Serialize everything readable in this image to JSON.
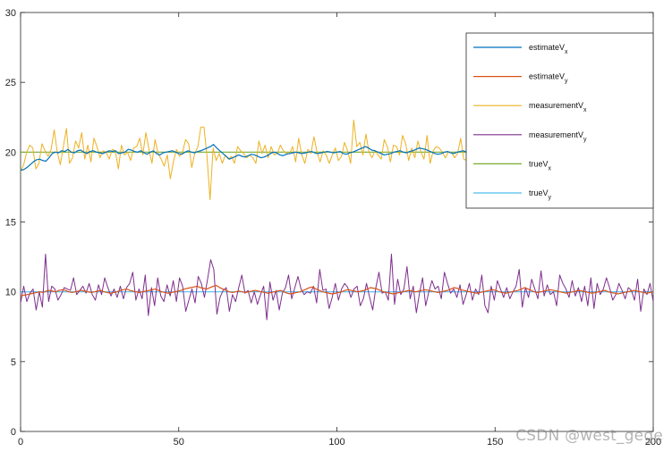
{
  "chart_data": {
    "type": "line",
    "title": "",
    "xlabel": "",
    "ylabel": "",
    "xlim": [
      0,
      200
    ],
    "ylim": [
      0,
      30
    ],
    "xticks": [
      0,
      50,
      100,
      150,
      200
    ],
    "yticks": [
      0,
      5,
      10,
      15,
      20,
      25,
      30
    ],
    "grid": false,
    "legend_position": "top-right",
    "series": [
      {
        "name": "estimateVx",
        "label_main": "estimateV",
        "label_sub": "x",
        "color": "#0072BD",
        "values": [
          18.7,
          18.75,
          18.9,
          19.1,
          19.3,
          19.45,
          19.5,
          19.4,
          19.35,
          19.6,
          19.9,
          20.0,
          19.95,
          20.1,
          20.05,
          20.2,
          20.0,
          19.95,
          20.1,
          20.15,
          20.0,
          19.9,
          20.05,
          20.1,
          20.0,
          19.95,
          19.9,
          20.0,
          20.1,
          20.05,
          20.1,
          19.9,
          19.95,
          20.0,
          20.2,
          20.15,
          20.05,
          20.0,
          20.1,
          19.95,
          19.85,
          20.0,
          20.1,
          19.9,
          19.8,
          19.95,
          20.0,
          20.05,
          20.1,
          20.0,
          19.9,
          19.85,
          20.0,
          20.1,
          20.0,
          19.95,
          20.05,
          20.1,
          20.2,
          20.3,
          20.4,
          20.55,
          20.3,
          20.1,
          19.9,
          19.7,
          19.5,
          19.6,
          19.7,
          19.8,
          19.7,
          19.65,
          19.75,
          19.85,
          19.8,
          19.7,
          19.6,
          19.65,
          19.75,
          19.9,
          20.0,
          19.95,
          19.8,
          19.75,
          19.85,
          19.9,
          19.95,
          20.0,
          19.95,
          19.9,
          19.95,
          20.0,
          20.05,
          19.95,
          19.9,
          19.95,
          20.0,
          20.05,
          20.0,
          19.95,
          20.0,
          20.05,
          19.9,
          19.85,
          19.95,
          20.0,
          20.1,
          20.2,
          20.3,
          20.4,
          20.3,
          20.15,
          20.1,
          20.0,
          19.9,
          19.8,
          19.85,
          19.9,
          20.0,
          20.05,
          20.1,
          20.0,
          19.95,
          20.05,
          20.1,
          20.2,
          20.3,
          20.25,
          20.2,
          20.1,
          20.0,
          19.9,
          19.85,
          19.9,
          20.0,
          20.05,
          19.95,
          19.9,
          20.0,
          20.05,
          20.1,
          20.0,
          19.95,
          20.05,
          20.1,
          20.05,
          20.0,
          19.9,
          19.85,
          19.9,
          19.95,
          20.0,
          20.05,
          20.1,
          20.15,
          20.1,
          20.05,
          20.0,
          19.95,
          19.9,
          19.95,
          20.0,
          20.05,
          20.1,
          20.0,
          19.95,
          20.0,
          20.05,
          20.1,
          20.0,
          19.95,
          20.0,
          20.05,
          20.1,
          20.05,
          19.95,
          19.9,
          19.85,
          19.9,
          20.0,
          20.05,
          20.0,
          19.95,
          19.9,
          19.85,
          19.9,
          19.95,
          20.0,
          19.9,
          19.85,
          19.8,
          19.85,
          19.9,
          19.85,
          19.8,
          19.75,
          19.7,
          19.65,
          19.7,
          19.7,
          19.75
        ]
      },
      {
        "name": "estimateVy",
        "label_main": "estimateV",
        "label_sub": "y",
        "color": "#D95319",
        "values": [
          9.7,
          9.75,
          9.8,
          9.85,
          9.9,
          9.95,
          10.0,
          9.95,
          10.05,
          10.1,
          10.05,
          10.0,
          10.1,
          10.15,
          10.1,
          10.0,
          9.95,
          10.0,
          10.05,
          10.1,
          10.05,
          10.0,
          9.95,
          10.0,
          10.05,
          10.1,
          10.0,
          9.95,
          9.9,
          9.95,
          10.0,
          10.1,
          10.15,
          10.2,
          10.1,
          10.05,
          10.0,
          9.95,
          10.0,
          10.05,
          10.1,
          10.15,
          10.2,
          10.1,
          10.0,
          9.95,
          9.9,
          9.95,
          10.0,
          10.05,
          10.1,
          10.2,
          10.25,
          10.3,
          10.35,
          10.4,
          10.3,
          10.25,
          10.2,
          10.3,
          10.4,
          10.45,
          10.3,
          10.2,
          10.1,
          10.0,
          9.95,
          10.0,
          10.05,
          10.0,
          9.95,
          10.0,
          10.05,
          10.1,
          10.05,
          10.0,
          9.95,
          9.9,
          9.95,
          10.0,
          10.05,
          10.1,
          10.0,
          9.9,
          9.85,
          9.9,
          9.95,
          10.0,
          10.1,
          10.2,
          10.3,
          10.35,
          10.2,
          10.1,
          10.0,
          9.95,
          9.9,
          9.85,
          9.9,
          9.95,
          10.0,
          10.1,
          10.15,
          10.1,
          10.05,
          10.0,
          10.05,
          10.1,
          10.2,
          10.3,
          10.25,
          10.2,
          10.1,
          10.0,
          9.95,
          9.9,
          9.85,
          9.9,
          9.95,
          10.0,
          10.05,
          10.1,
          10.05,
          10.0,
          10.05,
          10.1,
          10.15,
          10.1,
          10.05,
          10.0,
          9.95,
          10.0,
          10.05,
          10.1,
          10.2,
          10.3,
          10.25,
          10.15,
          10.1,
          10.05,
          10.0,
          9.95,
          9.9,
          9.95,
          10.0,
          10.05,
          10.1,
          10.15,
          10.1,
          10.0,
          9.95,
          9.9,
          9.95,
          10.0,
          10.05,
          10.1,
          10.2,
          10.3,
          10.2,
          10.1,
          10.0,
          9.95,
          10.0,
          10.05,
          10.1,
          10.15,
          10.1,
          10.05,
          10.0,
          9.95,
          9.9,
          9.95,
          10.0,
          10.05,
          10.1,
          10.05,
          10.0,
          9.95,
          9.9,
          9.95,
          10.0,
          10.05,
          10.1,
          10.0,
          9.95,
          9.9,
          9.85,
          9.9,
          9.95,
          10.0,
          10.05,
          10.1,
          10.05,
          10.0,
          9.95,
          9.9,
          9.95,
          10.0
        ]
      },
      {
        "name": "measurementVx",
        "label_main": "measurementV",
        "label_sub": "x",
        "color": "#EDB120",
        "values": [
          18.6,
          19.1,
          20.0,
          20.5,
          20.3,
          18.8,
          19.2,
          20.6,
          20.1,
          19.7,
          20.2,
          21.6,
          20.0,
          19.1,
          20.4,
          21.7,
          19.2,
          19.6,
          20.8,
          20.3,
          21.4,
          19.5,
          20.5,
          19.3,
          21.0,
          20.4,
          19.6,
          20.1,
          20.0,
          19.5,
          20.2,
          20.1,
          18.8,
          20.5,
          19.8,
          20.0,
          19.4,
          20.3,
          20.4,
          21.0,
          19.8,
          21.4,
          20.2,
          19.2,
          20.9,
          19.9,
          19.5,
          19.0,
          19.8,
          18.1,
          19.3,
          20.2,
          19.7,
          20.0,
          20.9,
          20.6,
          18.9,
          19.9,
          20.4,
          21.8,
          21.8,
          19.7,
          16.6,
          20.3,
          19.4,
          19.9,
          19.2,
          19.8,
          19.5,
          19.7,
          19.2,
          20.4,
          20.1,
          19.9,
          19.6,
          19.8,
          19.6,
          19.2,
          20.8,
          19.9,
          20.5,
          19.6,
          20.4,
          19.8,
          19.9,
          20.5,
          20.1,
          19.9,
          19.9,
          20.4,
          19.3,
          21.0,
          19.8,
          19.2,
          20.2,
          19.9,
          21.1,
          20.0,
          19.3,
          20.1,
          19.8,
          19.2,
          19.8,
          20.3,
          19.4,
          19.7,
          20.7,
          20.1,
          19.2,
          22.3,
          20.4,
          20.7,
          19.8,
          21.3,
          20.0,
          19.6,
          20.1,
          19.8,
          19.5,
          20.9,
          20.4,
          19.3,
          20.5,
          20.4,
          19.8,
          21.2,
          20.6,
          19.4,
          20.3,
          19.6,
          20.8,
          20.0,
          19.5,
          21.2,
          19.2,
          20.1,
          20.4,
          20.3,
          20.0,
          19.6,
          20.0,
          20.0,
          19.6,
          19.9,
          21.0,
          19.5,
          19.4,
          19.6,
          19.8,
          19.2,
          21.0,
          20.8,
          20.2,
          19.4,
          19.8,
          20.1,
          20.4,
          20.3,
          21.2,
          19.6,
          20.5,
          19.8,
          20.1,
          19.5,
          20.2,
          21.5,
          20.0,
          20.1,
          19.0,
          19.6,
          20.0,
          19.5,
          20.2,
          20.8,
          19.7,
          20.6,
          19.5,
          21.0,
          19.7,
          20.3,
          19.8,
          20.9,
          19.2,
          19.8,
          19.6,
          20.1,
          20.2,
          19.9,
          19.6,
          20.8,
          19.7,
          19.9,
          19.4,
          19.2,
          20.3,
          21.4,
          19.3,
          18.7,
          19.8,
          19.2,
          18.5,
          20.1,
          19.3,
          18.7,
          20.3,
          20.0,
          19.7,
          20.4
        ]
      },
      {
        "name": "measurementVy",
        "label_main": "measurementV",
        "label_sub": "y",
        "color": "#7E2F8E",
        "values": [
          9.2,
          10.4,
          9.3,
          9.9,
          10.2,
          8.7,
          10.0,
          8.9,
          12.7,
          9.3,
          10.4,
          10.2,
          9.4,
          9.8,
          10.3,
          10.2,
          10.1,
          11.0,
          9.8,
          10.1,
          10.4,
          9.9,
          10.6,
          9.8,
          9.4,
          10.5,
          9.8,
          11.0,
          10.3,
          9.7,
          10.2,
          9.6,
          10.4,
          9.5,
          10.3,
          10.6,
          11.4,
          9.4,
          10.2,
          9.5,
          11.2,
          8.3,
          10.3,
          9.0,
          11.0,
          9.7,
          9.3,
          10.5,
          9.7,
          10.8,
          9.3,
          11.0,
          10.4,
          8.6,
          9.4,
          10.2,
          9.2,
          11.1,
          10.6,
          9.6,
          10.9,
          12.3,
          11.6,
          8.4,
          9.6,
          10.1,
          10.3,
          8.6,
          9.8,
          9.3,
          10.3,
          11.2,
          9.9,
          10.1,
          9.2,
          10.0,
          9.1,
          9.8,
          10.4,
          8.0,
          10.7,
          9.4,
          10.1,
          8.7,
          9.9,
          10.3,
          11.2,
          9.5,
          10.3,
          11.1,
          10.2,
          9.8,
          10.0,
          9.9,
          10.4,
          9.2,
          11.6,
          10.1,
          10.2,
          8.8,
          9.6,
          10.6,
          9.4,
          10.2,
          10.6,
          10.3,
          9.6,
          10.2,
          10.4,
          9.0,
          9.5,
          10.6,
          9.6,
          8.7,
          10.3,
          11.4,
          9.9,
          10.0,
          9.4,
          12.7,
          9.1,
          10.9,
          9.8,
          10.2,
          11.8,
          9.5,
          10.4,
          8.5,
          9.9,
          11.0,
          9.0,
          10.0,
          10.8,
          10.2,
          10.4,
          9.5,
          11.4,
          10.6,
          9.9,
          10.2,
          9.6,
          10.5,
          9.1,
          9.8,
          10.6,
          9.4,
          10.2,
          9.8,
          11.2,
          9.0,
          8.5,
          10.4,
          9.4,
          10.8,
          10.2,
          9.6,
          10.3,
          9.5,
          10.0,
          10.4,
          11.6,
          8.9,
          10.3,
          9.6,
          10.9,
          10.2,
          9.5,
          11.5,
          9.7,
          10.5,
          9.8,
          10.0,
          9.0,
          11.2,
          10.6,
          10.2,
          9.6,
          10.8,
          9.7,
          10.3,
          9.3,
          10.4,
          9.0,
          11.0,
          8.8,
          10.6,
          9.8,
          10.2,
          11.0,
          10.3,
          9.4,
          9.8,
          10.6,
          10.1,
          9.5,
          10.3,
          10.1,
          9.4,
          10.9,
          8.6,
          10.2,
          9.8,
          10.6,
          9.3
        ]
      },
      {
        "name": "trueVx",
        "label_main": "trueV",
        "label_sub": "x",
        "color": "#77AC30",
        "values": [
          20,
          20
        ]
      },
      {
        "name": "trueVy",
        "label_main": "trueV",
        "label_sub": "y",
        "color": "#4DBEEE",
        "values": [
          10,
          10
        ]
      }
    ]
  },
  "watermark": {
    "text": "CSDN @west_gege"
  }
}
